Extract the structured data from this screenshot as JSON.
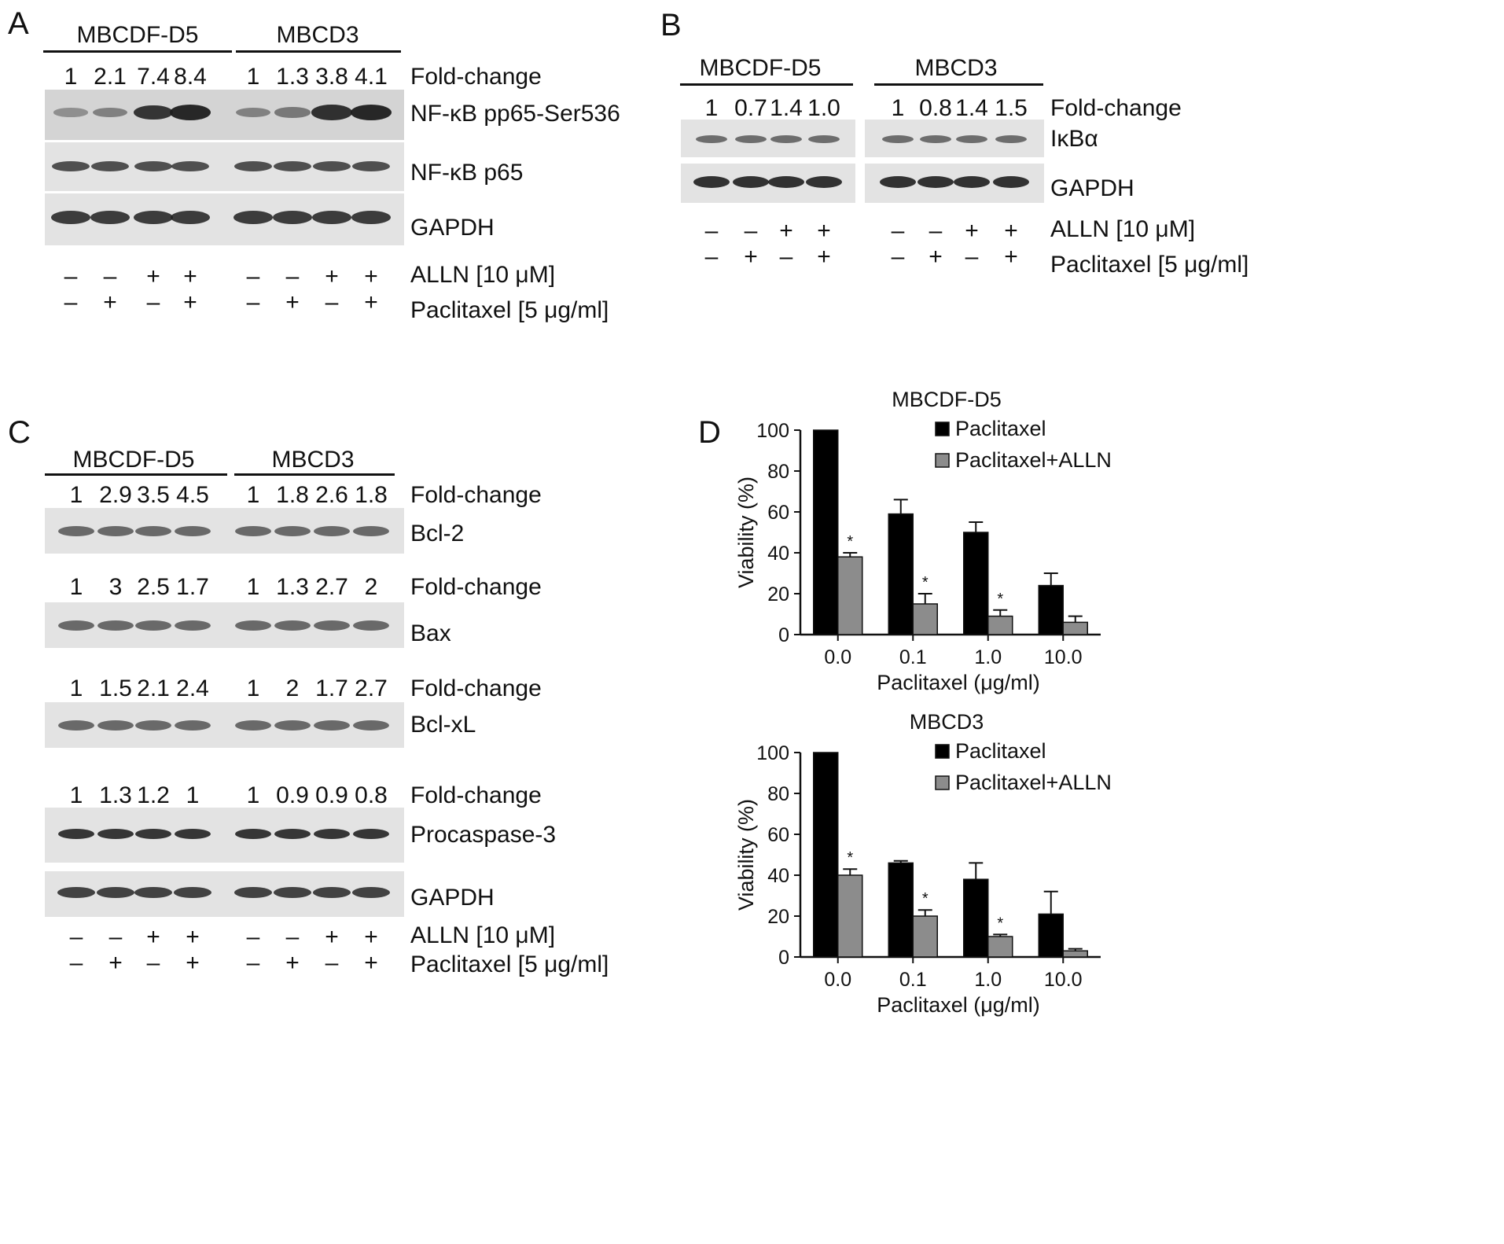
{
  "panels": {
    "A": {
      "label": "A",
      "groups": [
        "MBCDF-D5",
        "MBCD3"
      ],
      "fold_label": "Fold-change",
      "fold_values": [
        "1",
        "2.1",
        "7.4",
        "8.4",
        "1",
        "1.3",
        "3.8",
        "4.1"
      ],
      "blots": [
        "NF-κB pp65-Ser536",
        "NF-κB p65",
        "GAPDH"
      ],
      "treat1_label": "ALLN [10 μM]",
      "treat1_signs": [
        "–",
        "–",
        "+",
        "+",
        "–",
        "–",
        "+",
        "+"
      ],
      "treat2_label": "Paclitaxel [5 μg/ml]",
      "treat2_signs": [
        "–",
        "+",
        "–",
        "+",
        "–",
        "+",
        "–",
        "+"
      ]
    },
    "B": {
      "label": "B",
      "groups": [
        "MBCDF-D5",
        "MBCD3"
      ],
      "fold_label": "Fold-change",
      "fold_values": [
        "1",
        "0.7",
        "1.4",
        "1.0",
        "1",
        "0.8",
        "1.4",
        "1.5"
      ],
      "blots": [
        "IκBα",
        "GAPDH"
      ],
      "treat1_label": "ALLN [10 μM]",
      "treat1_signs": [
        "–",
        "–",
        "+",
        "+",
        "–",
        "–",
        "+",
        "+"
      ],
      "treat2_label": "Paclitaxel [5 μg/ml]",
      "treat2_signs": [
        "–",
        "+",
        "–",
        "+",
        "–",
        "+",
        "–",
        "+"
      ]
    },
    "C": {
      "label": "C",
      "groups": [
        "MBCDF-D5",
        "MBCD3"
      ],
      "fold_label": "Fold-change",
      "rows": [
        {
          "fold": [
            "1",
            "2.9",
            "3.5",
            "4.5",
            "1",
            "1.8",
            "2.6",
            "1.8"
          ],
          "blot": "Bcl-2"
        },
        {
          "fold": [
            "1",
            "3",
            "2.5",
            "1.7",
            "1",
            "1.3",
            "2.7",
            "2"
          ],
          "blot": "Bax"
        },
        {
          "fold": [
            "1",
            "1.5",
            "2.1",
            "2.4",
            "1",
            "2",
            "1.7",
            "2.7"
          ],
          "blot": "Bcl-xL"
        },
        {
          "fold": [
            "1",
            "1.3",
            "1.2",
            "1",
            "1",
            "0.9",
            "0.9",
            "0.8"
          ],
          "blot": "Procaspase-3"
        }
      ],
      "loading_blot": "GAPDH",
      "treat1_label": "ALLN [10 μM]",
      "treat1_signs": [
        "–",
        "–",
        "+",
        "+",
        "–",
        "–",
        "+",
        "+"
      ],
      "treat2_label": "Paclitaxel [5 μg/ml]",
      "treat2_signs": [
        "–",
        "+",
        "–",
        "+",
        "–",
        "+",
        "–",
        "+"
      ]
    },
    "D": {
      "label": "D"
    }
  },
  "chart_data": [
    {
      "type": "bar",
      "title": "MBCDF-D5",
      "categories": [
        "0.0",
        "0.1",
        "1.0",
        "10.0"
      ],
      "xlabel": "Paclitaxel (μg/ml)",
      "ylabel": "Viability (%)",
      "ylim": [
        0,
        100
      ],
      "yticks": [
        "0",
        "20",
        "40",
        "60",
        "80",
        "100"
      ],
      "legend_position": "top-right",
      "series": [
        {
          "name": "Paclitaxel",
          "color": "#000000",
          "values": [
            100,
            59,
            50,
            24
          ],
          "errors": [
            0,
            7,
            5,
            6
          ]
        },
        {
          "name": "Paclitaxel+ALLN",
          "color": "#8c8c8c",
          "values": [
            38,
            15,
            9,
            6
          ],
          "errors": [
            2,
            5,
            3,
            3
          ]
        }
      ],
      "significance": [
        "*",
        "*",
        "*",
        ""
      ]
    },
    {
      "type": "bar",
      "title": "MBCD3",
      "categories": [
        "0.0",
        "0.1",
        "1.0",
        "10.0"
      ],
      "xlabel": "Paclitaxel (μg/ml)",
      "ylabel": "Viability (%)",
      "ylim": [
        0,
        100
      ],
      "yticks": [
        "0",
        "20",
        "40",
        "60",
        "80",
        "100"
      ],
      "legend_position": "top-right",
      "series": [
        {
          "name": "Paclitaxel",
          "color": "#000000",
          "values": [
            100,
            46,
            38,
            21
          ],
          "errors": [
            0,
            1,
            8,
            11
          ]
        },
        {
          "name": "Paclitaxel+ALLN",
          "color": "#8c8c8c",
          "values": [
            40,
            20,
            10,
            3
          ],
          "errors": [
            3,
            3,
            1,
            1
          ]
        }
      ],
      "significance": [
        "*",
        "*",
        "*",
        ""
      ]
    }
  ]
}
